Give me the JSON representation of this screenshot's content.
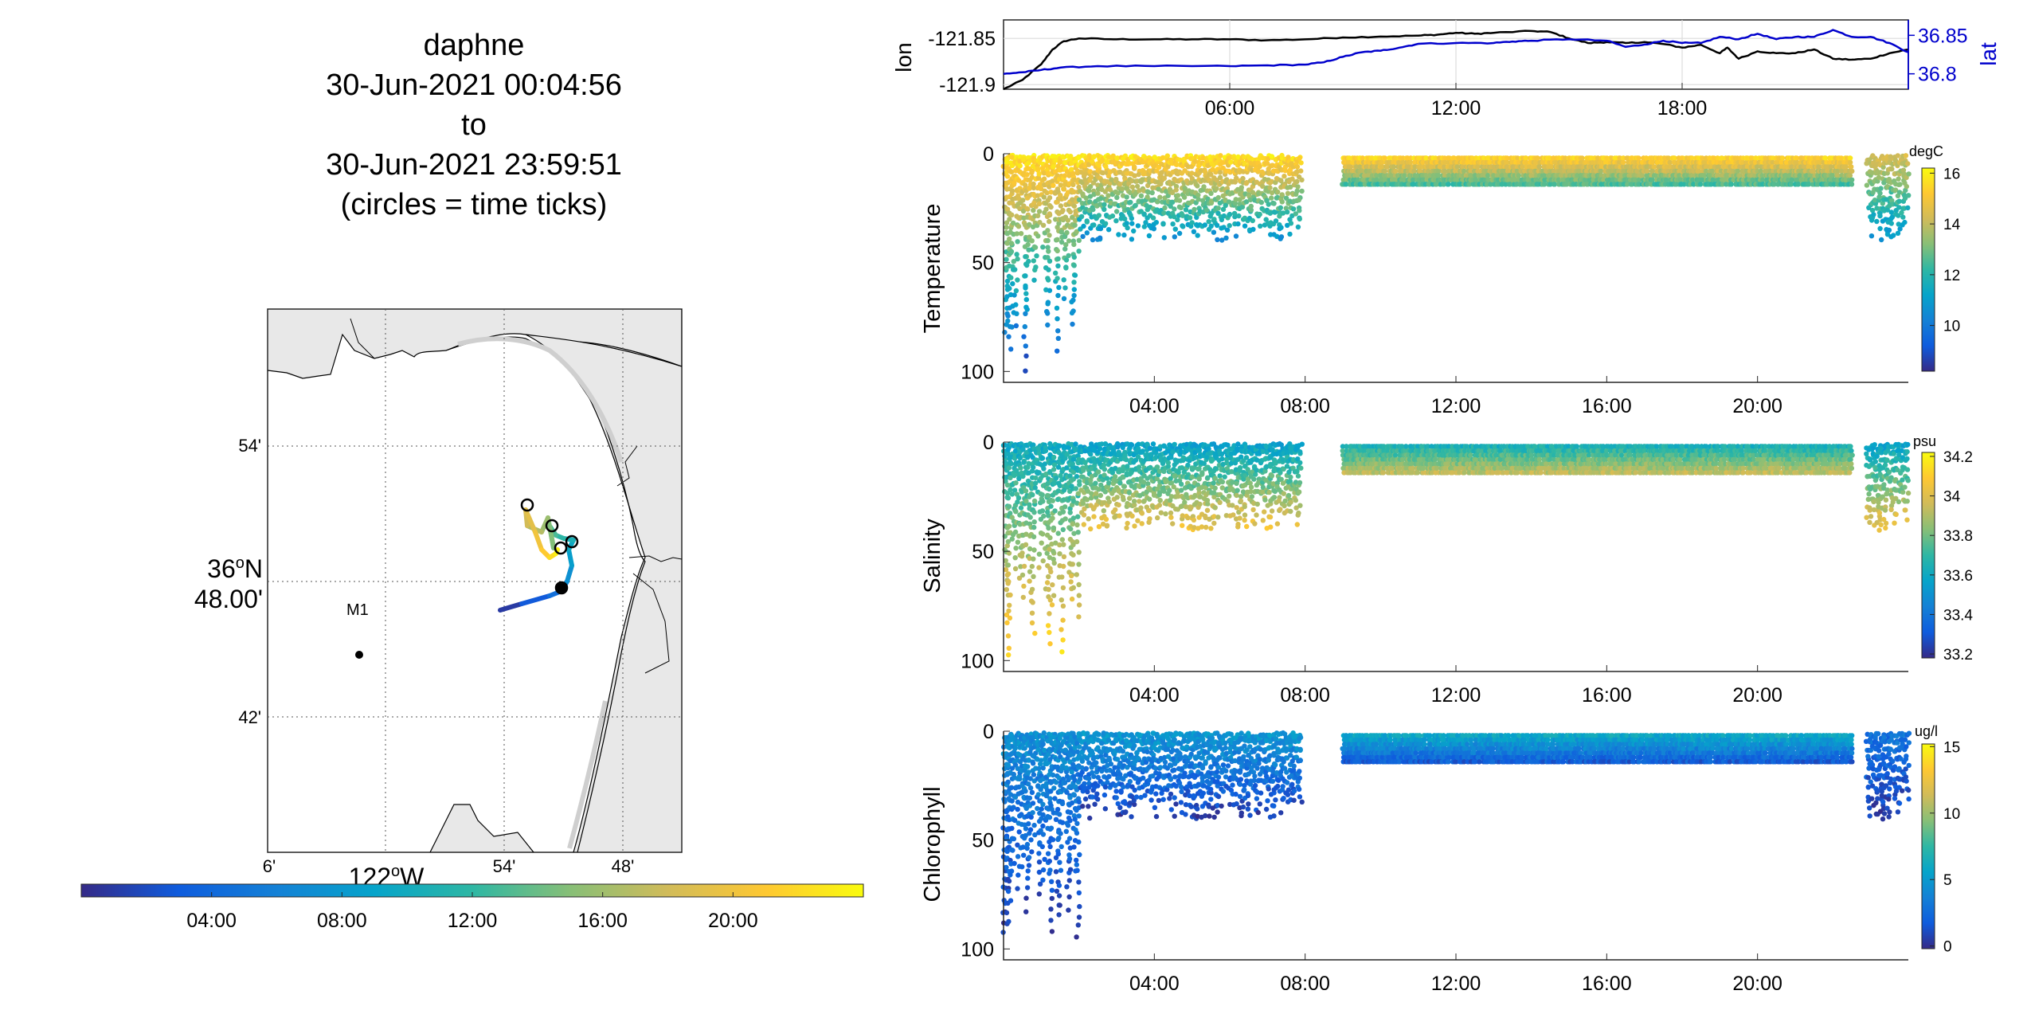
{
  "header": {
    "title_lines": [
      "daphne",
      "30-Jun-2021 00:04:56",
      "to",
      "30-Jun-2021 23:59:51",
      "(circles = time ticks)"
    ]
  },
  "colors": {
    "parula": [
      "#352a87",
      "#0f5cdd",
      "#1481d6",
      "#06a4ca",
      "#2eb7a4",
      "#87bf77",
      "#d1bb59",
      "#fec832",
      "#f9fb0e"
    ],
    "lon_line": "#000000",
    "lat_line": "#0000cc",
    "land": "#e8e8e8"
  },
  "chart_data": [
    {
      "type": "line",
      "panel": "lonlat",
      "ylabel_left": "lon",
      "ylabel_right": "lat",
      "x_ticks": [
        "06:00",
        "12:00",
        "18:00"
      ],
      "xlim_hours": [
        0,
        24
      ],
      "left_ylim": [
        -121.905,
        -121.83
      ],
      "left_ticks": [
        "-121.85",
        "-121.9"
      ],
      "right_ylim": [
        36.78,
        36.87
      ],
      "right_ticks": [
        "36.85",
        "36.8"
      ],
      "grid": true,
      "series": [
        {
          "name": "lon",
          "axis": "left",
          "x_hours": [
            0,
            0.5,
            1.0,
            1.3,
            1.6,
            2.0,
            3,
            4,
            5,
            6,
            7,
            8,
            9,
            10,
            11,
            11.5,
            12,
            12.5,
            13,
            14,
            14.5,
            15,
            15.5,
            16,
            16.5,
            17,
            17.5,
            18,
            18.5,
            19,
            19.2,
            19.5,
            20,
            20.5,
            21,
            21.5,
            22,
            22.5,
            23,
            23.5,
            24
          ],
          "values": [
            -121.905,
            -121.895,
            -121.878,
            -121.862,
            -121.853,
            -121.85,
            -121.851,
            -121.851,
            -121.851,
            -121.851,
            -121.852,
            -121.851,
            -121.849,
            -121.848,
            -121.847,
            -121.846,
            -121.844,
            -121.845,
            -121.844,
            -121.842,
            -121.843,
            -121.85,
            -121.855,
            -121.854,
            -121.855,
            -121.854,
            -121.856,
            -121.86,
            -121.857,
            -121.866,
            -121.86,
            -121.872,
            -121.864,
            -121.866,
            -121.866,
            -121.862,
            -121.872,
            -121.873,
            -121.872,
            -121.866,
            -121.862
          ]
        },
        {
          "name": "lat",
          "axis": "right",
          "x_hours": [
            0,
            0.5,
            1.0,
            1.5,
            2.5,
            4,
            6,
            7,
            8,
            8.5,
            9,
            9.5,
            10,
            10.5,
            11,
            12,
            13,
            13.5,
            14,
            15,
            16,
            16.5,
            17,
            17.5,
            18,
            18.5,
            19,
            19.5,
            20,
            20.5,
            21,
            21.5,
            22,
            22.5,
            23,
            23.5,
            24
          ],
          "values": [
            36.8,
            36.802,
            36.805,
            36.808,
            36.81,
            36.81,
            36.81,
            36.811,
            36.812,
            36.815,
            36.822,
            36.828,
            36.83,
            36.834,
            36.839,
            36.84,
            36.84,
            36.842,
            36.843,
            36.845,
            36.843,
            36.835,
            36.838,
            36.843,
            36.84,
            36.84,
            36.848,
            36.845,
            36.852,
            36.845,
            36.848,
            36.848,
            36.857,
            36.848,
            36.848,
            36.84,
            36.828
          ]
        }
      ]
    },
    {
      "type": "scatter",
      "panel": "temperature",
      "ylabel": "Temperature",
      "x_ticks": [
        "04:00",
        "08:00",
        "12:00",
        "16:00",
        "20:00"
      ],
      "xlim_hours": [
        0,
        24
      ],
      "ylim": [
        0,
        105
      ],
      "y_reversed": true,
      "y_ticks": [
        0,
        50,
        100
      ],
      "colorbar": {
        "label": "degC",
        "range": [
          8.2,
          16.2
        ],
        "ticks": [
          "16",
          "14",
          "12",
          "10"
        ],
        "tick_values": [
          16,
          14,
          12,
          10
        ]
      },
      "description_segments": [
        {
          "from_h": 0.0,
          "to_h": 2.0,
          "depth_max": 100,
          "value_surface": 15.8,
          "value_deep": 8.8
        },
        {
          "from_h": 2.0,
          "to_h": 7.9,
          "depth_max": 40,
          "value_surface": 15.8,
          "value_deep": 10.5
        },
        {
          "from_h": 9.0,
          "to_h": 22.5,
          "depth_max": 15,
          "value_surface": 15.8,
          "value_deep": 12.3
        },
        {
          "from_h": 22.9,
          "to_h": 24.0,
          "depth_max": 40,
          "value_surface": 14.5,
          "value_deep": 10.5
        }
      ]
    },
    {
      "type": "scatter",
      "panel": "salinity",
      "ylabel": "Salinity",
      "x_ticks": [
        "04:00",
        "08:00",
        "12:00",
        "16:00",
        "20:00"
      ],
      "xlim_hours": [
        0,
        24
      ],
      "ylim": [
        0,
        105
      ],
      "y_reversed": true,
      "y_ticks": [
        0,
        50,
        100
      ],
      "colorbar": {
        "label": "psu",
        "range": [
          33.18,
          34.22
        ],
        "ticks": [
          "34.2",
          "34",
          "33.8",
          "33.6",
          "33.4",
          "33.2"
        ],
        "tick_values": [
          34.2,
          34.0,
          33.8,
          33.6,
          33.4,
          33.2
        ]
      },
      "description_segments": [
        {
          "from_h": 0.0,
          "to_h": 2.0,
          "depth_max": 100,
          "value_surface": 33.6,
          "value_deep": 34.15
        },
        {
          "from_h": 2.0,
          "to_h": 7.9,
          "depth_max": 40,
          "value_surface": 33.55,
          "value_deep": 34.05
        },
        {
          "from_h": 9.0,
          "to_h": 22.5,
          "depth_max": 15,
          "value_surface": 33.6,
          "value_deep": 33.95
        },
        {
          "from_h": 22.9,
          "to_h": 24.0,
          "depth_max": 40,
          "value_surface": 33.55,
          "value_deep": 34.05
        }
      ]
    },
    {
      "type": "scatter",
      "panel": "chlorophyll",
      "ylabel": "Chlorophyll",
      "x_ticks": [
        "04:00",
        "08:00",
        "12:00",
        "16:00",
        "20:00"
      ],
      "xlim_hours": [
        0,
        24
      ],
      "ylim": [
        0,
        105
      ],
      "y_reversed": true,
      "y_ticks": [
        0,
        50,
        100
      ],
      "colorbar": {
        "label": "ug/l",
        "range": [
          -0.2,
          15.2
        ],
        "ticks": [
          "15",
          "10",
          "5",
          "0"
        ],
        "tick_values": [
          15,
          10,
          5,
          0
        ]
      },
      "description_segments": [
        {
          "from_h": 0.0,
          "to_h": 2.0,
          "depth_max": 95,
          "value_surface": 4.5,
          "value_deep": 0.3
        },
        {
          "from_h": 2.0,
          "to_h": 7.9,
          "depth_max": 40,
          "value_surface": 5.0,
          "value_deep": 0.5
        },
        {
          "from_h": 9.0,
          "to_h": 22.5,
          "depth_max": 15,
          "value_surface": 6.5,
          "value_deep": 1.5
        },
        {
          "from_h": 22.9,
          "to_h": 24.0,
          "depth_max": 40,
          "value_surface": 3.0,
          "value_deep": 0.5
        }
      ]
    },
    {
      "type": "map",
      "panel": "track_map",
      "lat_labels": [
        "54'",
        "36°N 48.00'",
        "42'"
      ],
      "lon_labels": [
        "6'",
        "54'",
        "48'"
      ],
      "lon_degree_label": "122°W",
      "mooring": {
        "name": "M1"
      },
      "time_colorbar": {
        "ticks": [
          "04:00",
          "08:00",
          "12:00",
          "16:00",
          "20:00"
        ],
        "range_hours": [
          0,
          24
        ]
      }
    }
  ]
}
